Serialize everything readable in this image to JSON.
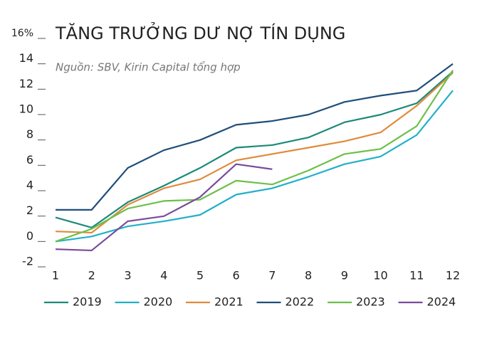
{
  "chart_data": {
    "type": "line",
    "title": "TĂNG TRƯỞNG DƯ NỢ TÍN DỤNG",
    "subtitle": "Nguồn: SBV, Kirin Capital tổng hợp",
    "x": [
      1,
      2,
      3,
      4,
      5,
      6,
      7,
      8,
      9,
      10,
      11,
      12
    ],
    "xlim": [
      1,
      12
    ],
    "xticks": [
      1,
      2,
      3,
      4,
      5,
      6,
      7,
      8,
      9,
      10,
      11,
      12
    ],
    "ylim": [
      -2,
      16
    ],
    "yticks": [
      -2,
      0,
      2,
      4,
      6,
      8,
      10,
      12,
      14,
      {
        "value": 16,
        "label": "16%"
      }
    ],
    "legend": "bottom",
    "series": [
      {
        "name": "2019",
        "color": "#1a8a78",
        "values": [
          1.5,
          0.7,
          2.7,
          4.0,
          5.4,
          7.0,
          7.2,
          7.8,
          9.0,
          9.6,
          10.5,
          13.0
        ]
      },
      {
        "name": "2020",
        "color": "#22b0c8",
        "values": [
          -0.4,
          0.0,
          0.8,
          1.2,
          1.7,
          3.3,
          3.8,
          4.7,
          5.7,
          6.3,
          8.0,
          11.5
        ]
      },
      {
        "name": "2021",
        "color": "#e08a3c",
        "values": [
          0.4,
          0.3,
          2.5,
          3.8,
          4.5,
          6.0,
          6.5,
          7.0,
          7.5,
          8.2,
          10.3,
          12.9
        ]
      },
      {
        "name": "2022",
        "color": "#1f4e79",
        "values": [
          2.1,
          2.1,
          5.4,
          6.8,
          7.6,
          8.8,
          9.1,
          9.6,
          10.6,
          11.1,
          11.5,
          13.6
        ]
      },
      {
        "name": "2023",
        "color": "#6cc04a",
        "values": [
          -0.4,
          0.6,
          2.2,
          2.8,
          2.9,
          4.4,
          4.1,
          5.2,
          6.5,
          6.9,
          8.7,
          13.1
        ]
      },
      {
        "name": "2024",
        "color": "#7a4a9a",
        "values": [
          -1.0,
          -1.1,
          1.2,
          1.6,
          3.1,
          5.7,
          5.3,
          null,
          null,
          null,
          null,
          null
        ]
      }
    ]
  }
}
